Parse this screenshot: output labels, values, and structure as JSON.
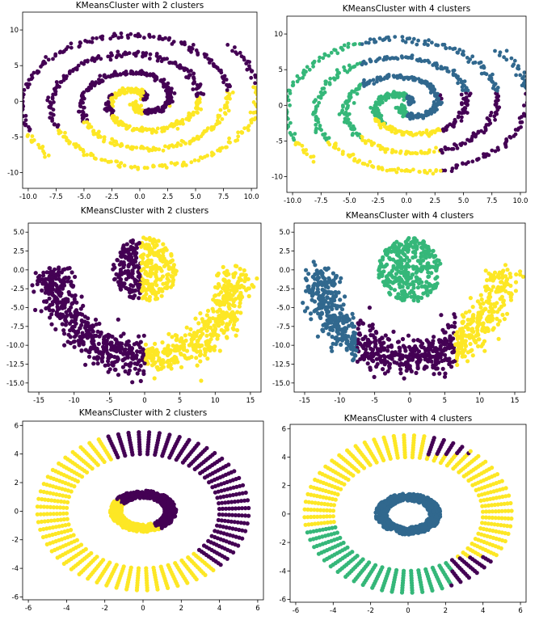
{
  "colors": {
    "purple": "#440154",
    "blue": "#31688e",
    "green": "#35b779",
    "yellow": "#fde725"
  },
  "chart_data": [
    {
      "type": "scatter",
      "title": "KMeansCluster with 2 clusters",
      "shape": "spirals",
      "n_clusters": 2,
      "xlim": [
        -10.5,
        10.5
      ],
      "ylim": [
        -12.2,
        12.5
      ],
      "xticks": [
        "-10.0",
        "-7.5",
        "-5.0",
        "-2.5",
        "0.0",
        "2.5",
        "5.0",
        "7.5",
        "10.0"
      ],
      "xtick_values": [
        -10,
        -7.5,
        -5,
        -2.5,
        0,
        2.5,
        5,
        7.5,
        10
      ],
      "yticks": [
        "10",
        "5",
        "0",
        "-5",
        "-10"
      ],
      "ytick_values": [
        10,
        5,
        0,
        -5,
        -10
      ],
      "series": [
        {
          "cluster": 0,
          "color": "purple"
        },
        {
          "cluster": 1,
          "color": "yellow"
        }
      ]
    },
    {
      "type": "scatter",
      "title": "KMeansCluster with 4 clusters",
      "shape": "spirals",
      "n_clusters": 4,
      "xlim": [
        -10.5,
        10.5
      ],
      "ylim": [
        -12.2,
        12.5
      ],
      "xticks": [
        "-10.0",
        "-7.5",
        "-5.0",
        "-2.5",
        "0.0",
        "2.5",
        "5.0",
        "7.5",
        "10.0"
      ],
      "xtick_values": [
        -10,
        -7.5,
        -5,
        -2.5,
        0,
        2.5,
        5,
        7.5,
        10
      ],
      "yticks": [
        "10",
        "5",
        "0",
        "-5",
        "-10"
      ],
      "ytick_values": [
        10,
        5,
        0,
        -5,
        -10
      ],
      "series": [
        {
          "cluster": 0,
          "color": "purple"
        },
        {
          "cluster": 1,
          "color": "blue"
        },
        {
          "cluster": 2,
          "color": "green"
        },
        {
          "cluster": 3,
          "color": "yellow"
        }
      ]
    },
    {
      "type": "scatter",
      "title": "KMeansCluster with 2 clusters",
      "shape": "moon-and-blob",
      "n_clusters": 2,
      "xlim": [
        -16.5,
        16.5
      ],
      "ylim": [
        -16.2,
        6.2
      ],
      "xticks": [
        "-15",
        "-10",
        "-5",
        "0",
        "5",
        "10",
        "15"
      ],
      "xtick_values": [
        -15,
        -10,
        -5,
        0,
        5,
        10,
        15
      ],
      "yticks": [
        "5.0",
        "2.5",
        "0.0",
        "-2.5",
        "-5.0",
        "-7.5",
        "-10.0",
        "-12.5",
        "-15.0"
      ],
      "ytick_values": [
        5,
        2.5,
        0,
        -2.5,
        -5,
        -7.5,
        -10,
        -12.5,
        -15
      ],
      "series": [
        {
          "cluster": 0,
          "color": "purple"
        },
        {
          "cluster": 1,
          "color": "yellow"
        }
      ]
    },
    {
      "type": "scatter",
      "title": "KMeansCluster with 4 clusters",
      "shape": "moon-and-blob",
      "n_clusters": 4,
      "xlim": [
        -16.5,
        16.5
      ],
      "ylim": [
        -16.2,
        6.2
      ],
      "xticks": [
        "-15",
        "-10",
        "-5",
        "0",
        "5",
        "10",
        "15"
      ],
      "xtick_values": [
        -15,
        -10,
        -5,
        0,
        5,
        10,
        15
      ],
      "yticks": [
        "5.0",
        "2.5",
        "0.0",
        "-2.5",
        "-5.0",
        "-7.5",
        "-10.0",
        "-12.5",
        "-15.0"
      ],
      "ytick_values": [
        5,
        2.5,
        0,
        -2.5,
        -5,
        -7.5,
        -10,
        -12.5,
        -15
      ],
      "series": [
        {
          "cluster": 0,
          "color": "purple"
        },
        {
          "cluster": 1,
          "color": "blue"
        },
        {
          "cluster": 2,
          "color": "green"
        },
        {
          "cluster": 3,
          "color": "yellow"
        }
      ]
    },
    {
      "type": "scatter",
      "title": "KMeansCluster with 2 clusters",
      "shape": "concentric-rings",
      "n_clusters": 2,
      "xlim": [
        -6.3,
        6.3
      ],
      "ylim": [
        -6.2,
        6.3
      ],
      "xticks": [
        "-6",
        "-4",
        "-2",
        "0",
        "2",
        "4",
        "6"
      ],
      "xtick_values": [
        -6,
        -4,
        -2,
        0,
        2,
        4,
        6
      ],
      "yticks": [
        "6",
        "4",
        "2",
        "0",
        "-2",
        "-4",
        "-6"
      ],
      "ytick_values": [
        6,
        4,
        2,
        0,
        -2,
        -4,
        -6
      ],
      "series": [
        {
          "cluster": 0,
          "color": "purple"
        },
        {
          "cluster": 1,
          "color": "yellow"
        }
      ]
    },
    {
      "type": "scatter",
      "title": "KMeansCluster with 4 clusters",
      "shape": "concentric-rings",
      "n_clusters": 4,
      "xlim": [
        -6.3,
        6.3
      ],
      "ylim": [
        -6.2,
        6.3
      ],
      "xticks": [
        "-6",
        "-4",
        "-2",
        "0",
        "2",
        "4",
        "6"
      ],
      "xtick_values": [
        -6,
        -4,
        -2,
        0,
        2,
        4,
        6
      ],
      "yticks": [
        "6",
        "4",
        "2",
        "0",
        "-2",
        "-4",
        "-6"
      ],
      "ytick_values": [
        6,
        4,
        2,
        0,
        -2,
        -4,
        -6
      ],
      "series": [
        {
          "cluster": 0,
          "color": "purple"
        },
        {
          "cluster": 1,
          "color": "blue"
        },
        {
          "cluster": 2,
          "color": "green"
        },
        {
          "cluster": 3,
          "color": "yellow"
        }
      ]
    }
  ]
}
